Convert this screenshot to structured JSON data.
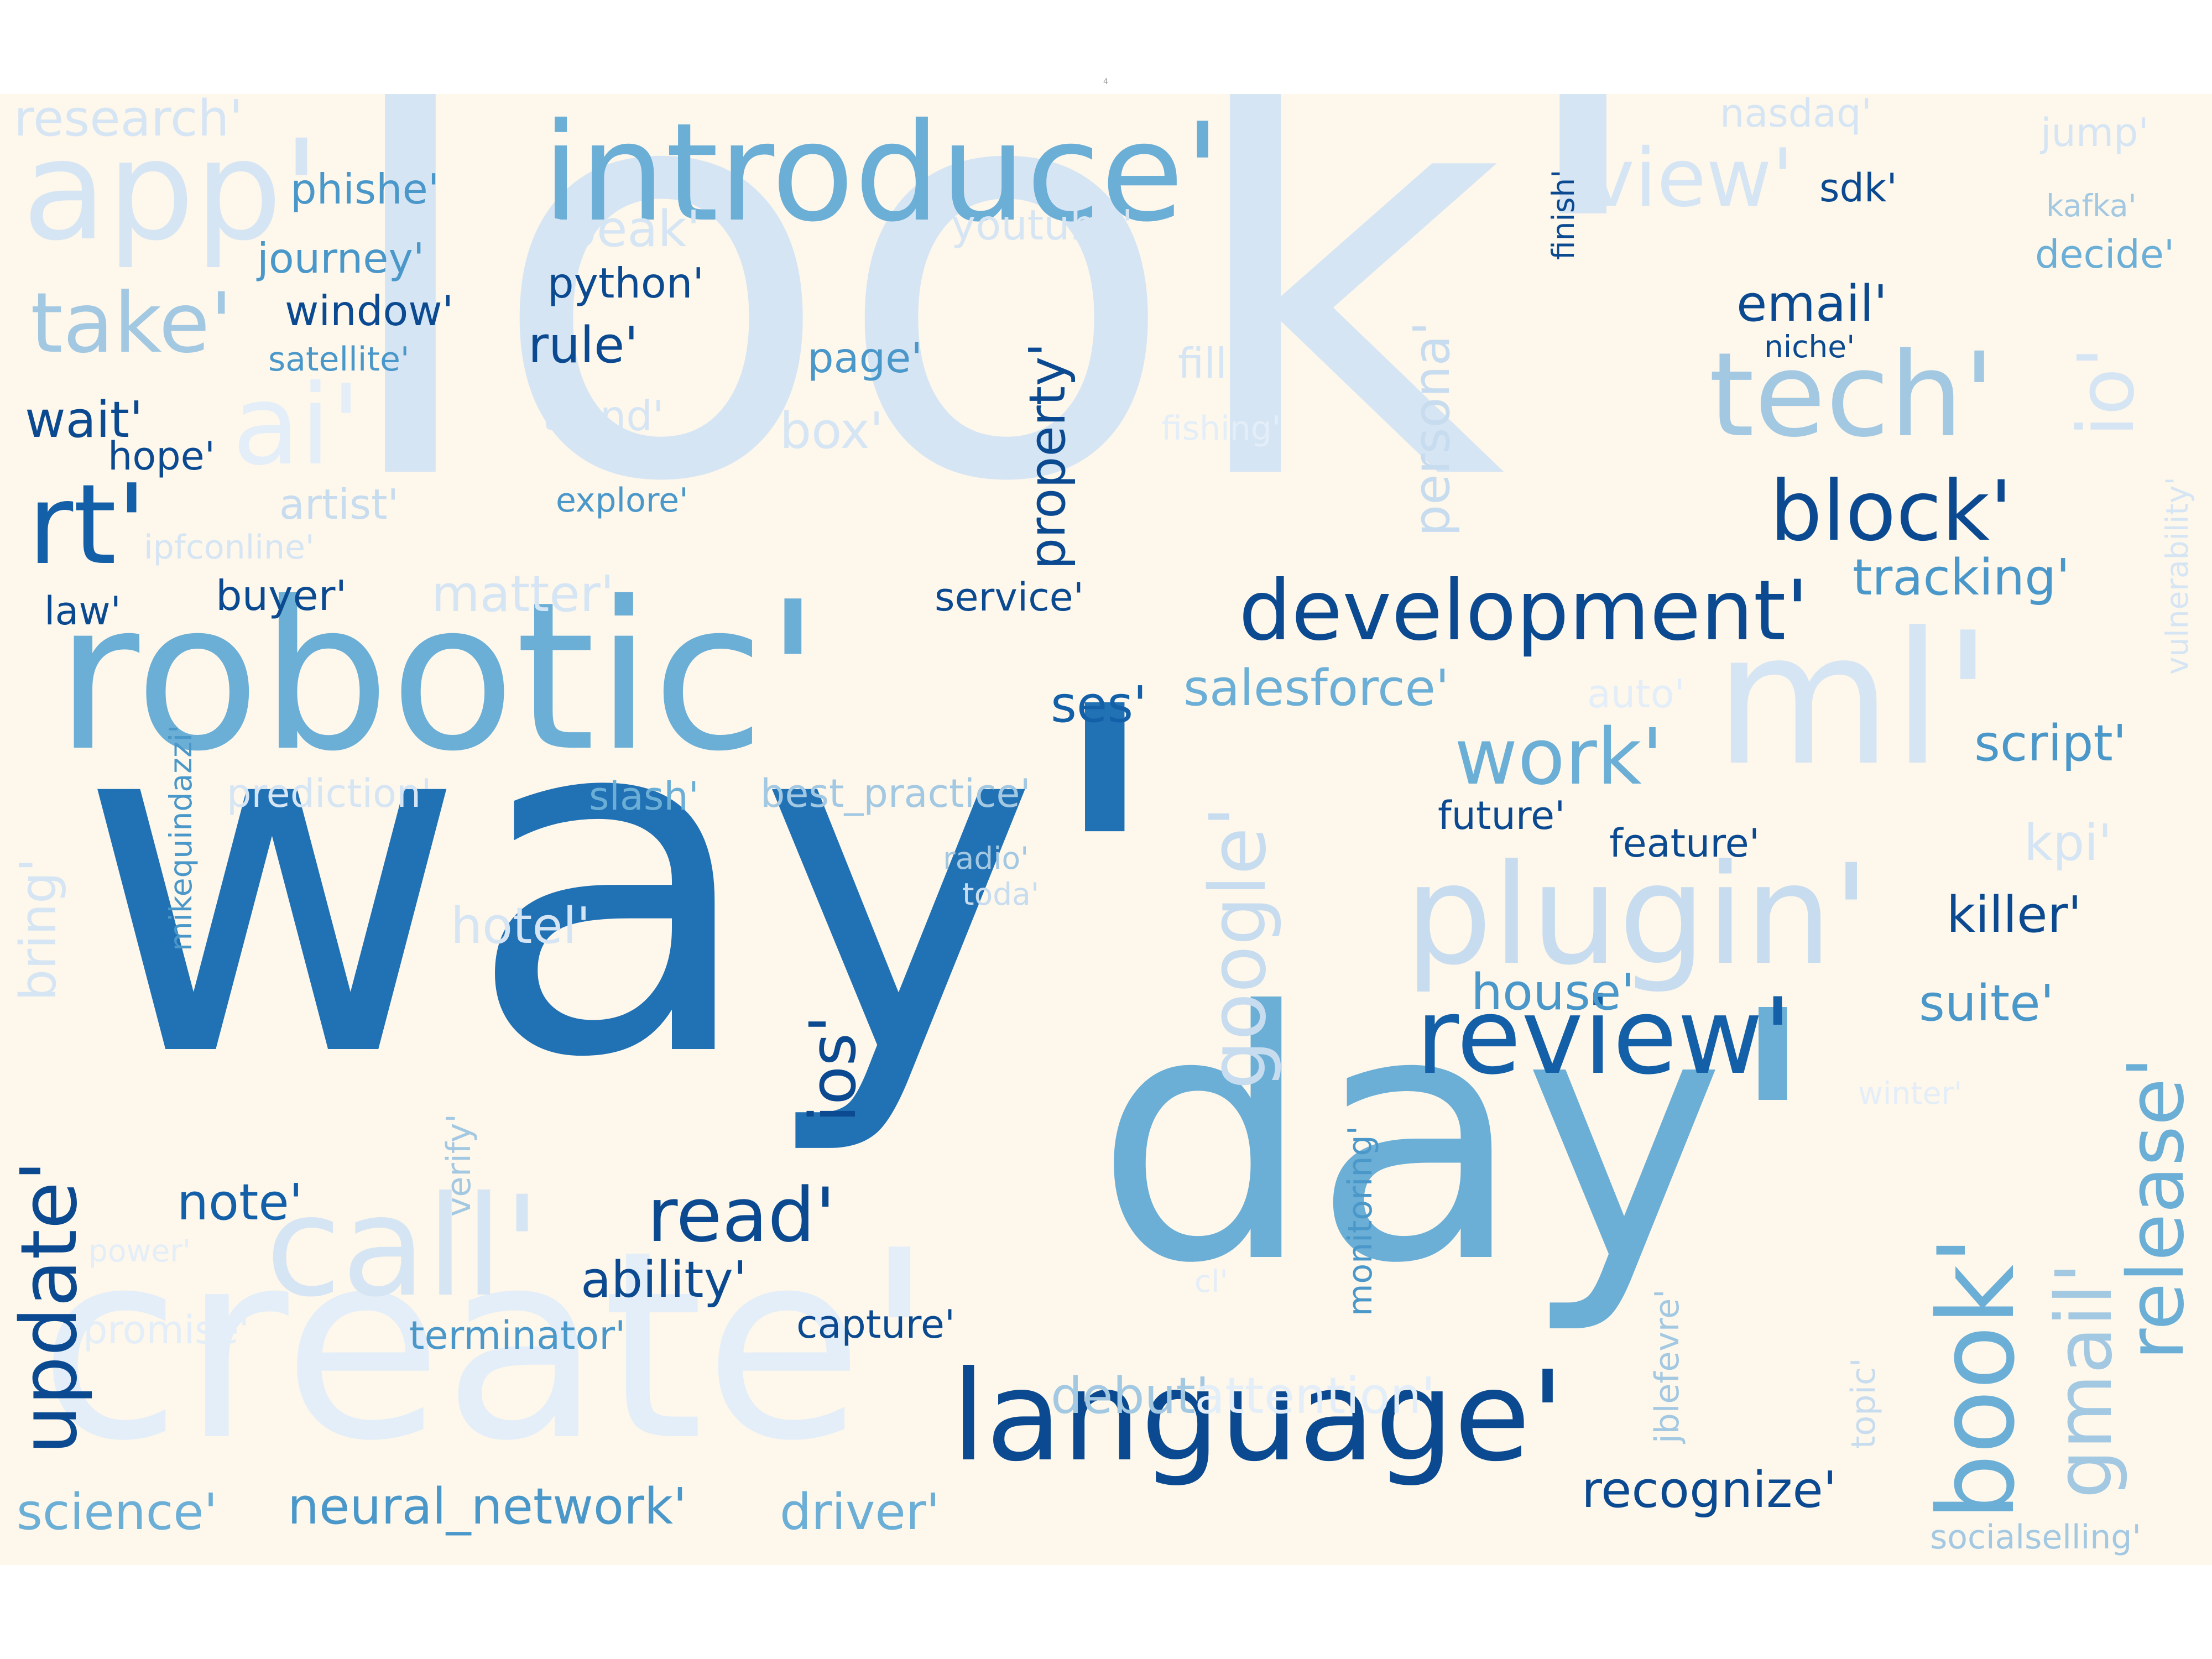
{
  "top_marker": "4",
  "words": {
    "look": "look'",
    "way": "way'",
    "day": "day'",
    "robotic": "robotic'",
    "introduce": "introduce'",
    "create": "create'",
    "language": "language'",
    "plugin": "plugin'",
    "ml": "ml'",
    "tech": "tech'",
    "app": "app'",
    "review": "review'",
    "development": "development'",
    "book": "book'",
    "update": "update'",
    "call": "call'",
    "rt": "rt'",
    "take": "take'",
    "ai": "ai'",
    "block": "block'",
    "release": "release'",
    "gmail": "gmail'",
    "google": "google'",
    "work": "work'",
    "read": "read'",
    "view": "view'",
    "io": "io'",
    "ios": "ios'",
    "box": "box'",
    "persona": "persona'",
    "property": "property'",
    "email": "email'",
    "tracking": "tracking'",
    "script": "script'",
    "killer": "killer'",
    "suite": "suite'",
    "house": "house'",
    "note": "note'",
    "salesforce": "salesforce'",
    "ses": "ses'",
    "research": "research'",
    "phishe": "phishe'",
    "journey": "journey'",
    "window": "window'",
    "satellite": "satellite'",
    "python": "python'",
    "rule": "rule'",
    "page": "page'",
    "speak": "speak'",
    "youtube": "youtube'",
    "trend": "trend'",
    "fill": "fill'",
    "fishing": "fishing'",
    "explore": "explore'",
    "wait": "wait'",
    "hope": "hope'",
    "artist": "artist'",
    "ipfconline": "ipfconline'",
    "law": "law'",
    "buyer": "buyer'",
    "matter": "matter'",
    "service": "service'",
    "sdk": "sdk'",
    "nasdaq": "nasdaq'",
    "jump": "jump'",
    "kafka": "kafka'",
    "decide": "decide'",
    "finish": "finish'",
    "niche": "niche'",
    "vulnerability": "vulnerability'",
    "auto": "auto'",
    "future": "future'",
    "feature": "feature'",
    "kpi": "kpi'",
    "mikequindazzi": "mikequindazzi'",
    "prediction": "prediction'",
    "slash": "slash'",
    "best_practice": "best_practice'",
    "radio": "radio'",
    "toda": "toda'",
    "hotel": "hotel'",
    "bring": "bring'",
    "verify": "verify'",
    "monitoring": "monitoring'",
    "winter": "winter'",
    "ability": "ability'",
    "capture": "capture'",
    "promise": "promise'",
    "terminator": "terminator'",
    "jblefevre": "jblefevre'",
    "topic": "topic'",
    "debut": "debut'",
    "attention": "attention'",
    "science": "science'",
    "neural_network": "neural_network'",
    "driver": "driver'",
    "recognize": "recognize'",
    "socialselling": "socialselling'",
    "cl": "cl'",
    "power": "power'"
  }
}
